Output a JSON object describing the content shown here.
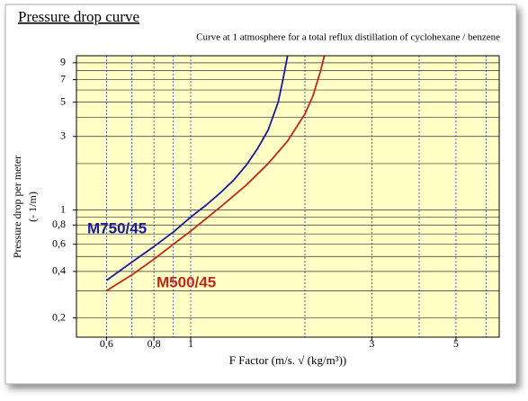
{
  "chart_data": {
    "type": "line",
    "title": "Pressure drop curve",
    "subtitle": "Curve at 1 atmosphere for a total reflux distillation of cyclohexane / benzene",
    "x_label": "F Factor (m/s. √ (kg/m³))",
    "y_label": [
      "Pressure drop per meter",
      "(- 1/m)"
    ],
    "log_x": true,
    "log_y": true,
    "grid": true,
    "xlim": [
      0.5,
      6.5
    ],
    "ylim": [
      0.15,
      10
    ],
    "xticks": [
      {
        "value": 0.6,
        "label": "0,6"
      },
      {
        "value": 0.8,
        "label": "0,8"
      },
      1,
      3,
      5
    ],
    "x_minor_ticks": [
      0.7,
      0.9,
      2,
      4,
      6
    ],
    "yticks": [
      {
        "value": 0.2,
        "label": "0,2"
      },
      {
        "value": 0.4,
        "label": "0,4"
      },
      {
        "value": 0.6,
        "label": "0,6"
      },
      {
        "value": 0.8,
        "label": "0,8"
      },
      1,
      3,
      5,
      7,
      9
    ],
    "y_minor_ticks": [
      0.3,
      0.5,
      0.7,
      0.9,
      2,
      4,
      6,
      8
    ],
    "series": [
      {
        "name": "M750/45",
        "color": "#1a1a9c",
        "x": [
          0.6,
          0.7,
          0.8,
          0.9,
          1.0,
          1.1,
          1.2,
          1.3,
          1.4,
          1.5,
          1.6,
          1.7,
          1.75,
          1.8
        ],
        "values": [
          0.35,
          0.46,
          0.58,
          0.72,
          0.9,
          1.08,
          1.3,
          1.57,
          1.95,
          2.5,
          3.3,
          5,
          7,
          10
        ]
      },
      {
        "name": "M500/45",
        "color": "#c0281a",
        "x": [
          0.6,
          0.7,
          0.8,
          0.9,
          1.0,
          1.2,
          1.4,
          1.6,
          1.8,
          2.0,
          2.1,
          2.2,
          2.25
        ],
        "values": [
          0.3,
          0.38,
          0.48,
          0.6,
          0.73,
          1.05,
          1.45,
          2.0,
          2.8,
          4.2,
          5.5,
          8,
          10
        ]
      }
    ]
  }
}
